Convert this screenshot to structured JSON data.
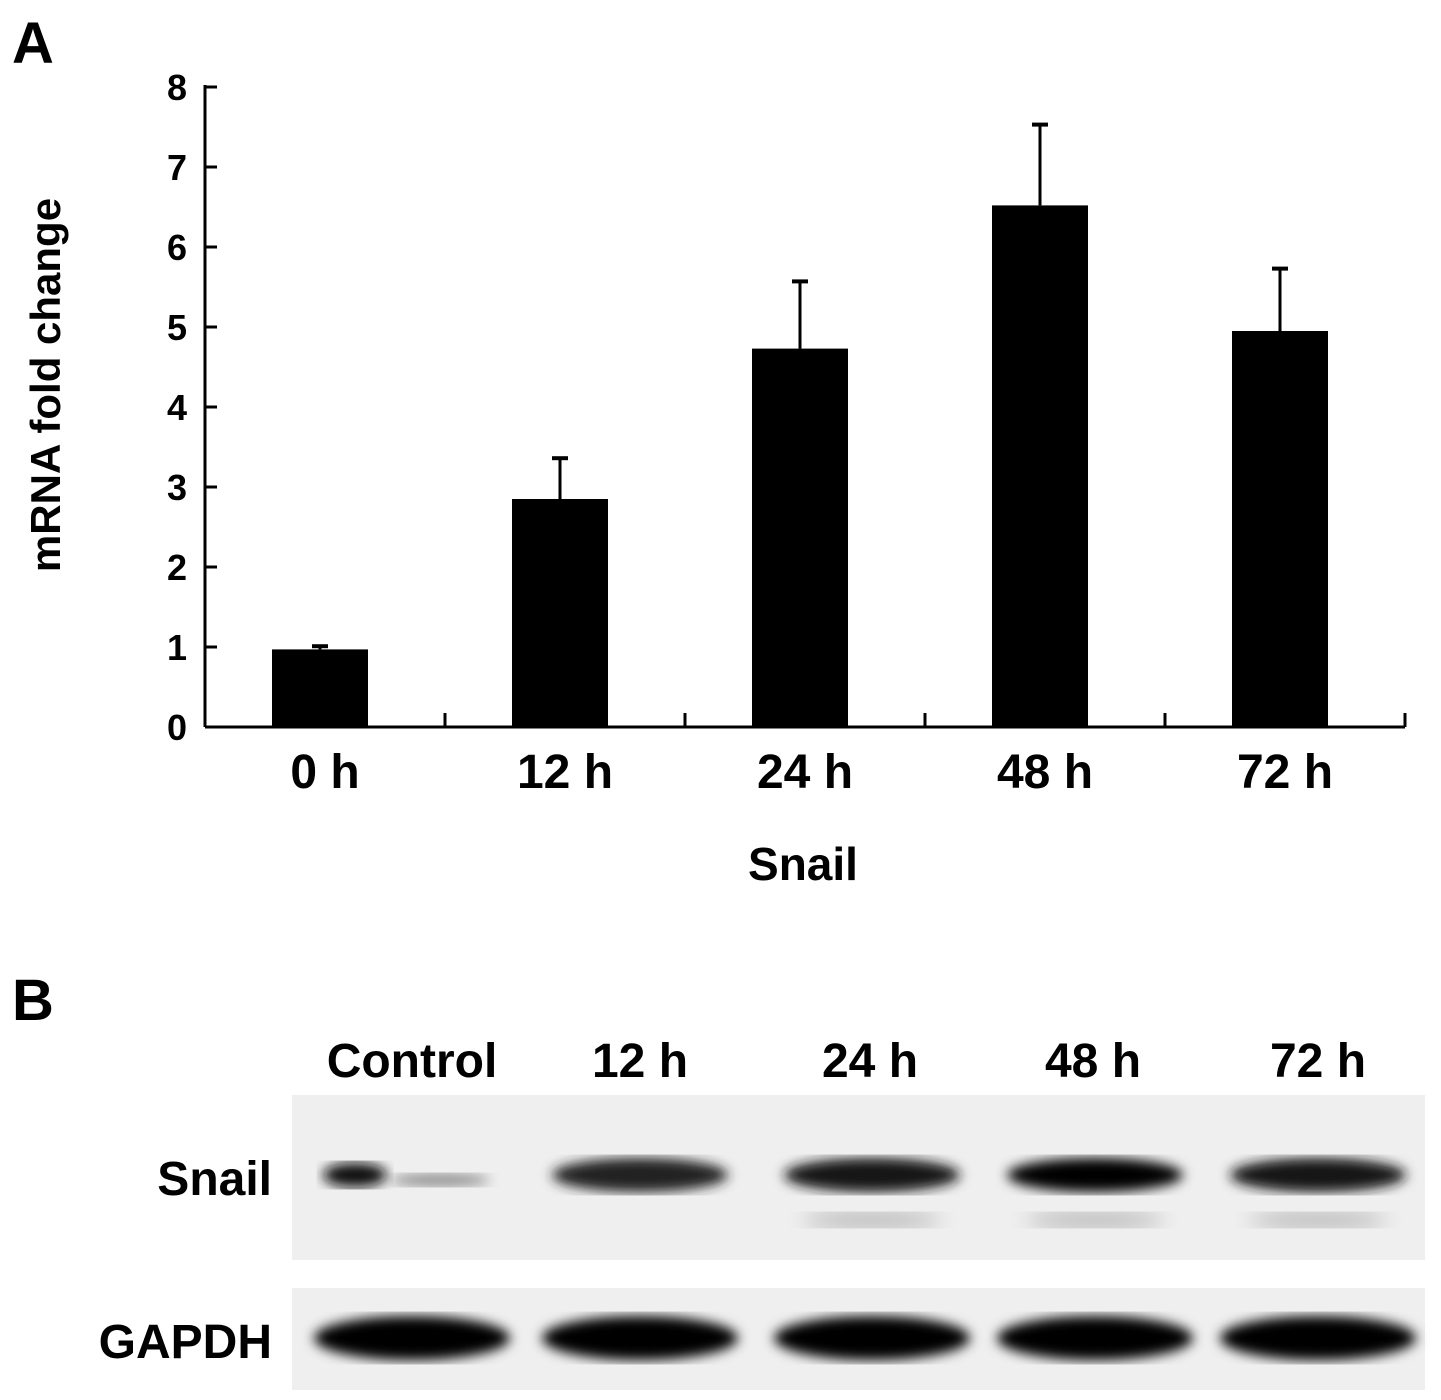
{
  "panel_a_label": "A",
  "panel_b_label": "B",
  "chart_data": {
    "type": "bar",
    "categories": [
      "0 h",
      "12 h",
      "24 h",
      "48 h",
      "72 h"
    ],
    "values": [
      0.97,
      2.85,
      4.73,
      6.52,
      4.95
    ],
    "error_upper": [
      1.01,
      3.36,
      5.57,
      7.53,
      5.73
    ],
    "xlabel": "Snail",
    "ylabel": "mRNA fold change",
    "ylim": [
      0,
      8
    ],
    "yticks": [
      "0",
      "1",
      "2",
      "3",
      "4",
      "5",
      "6",
      "7",
      "8"
    ],
    "bar_color": "#000000",
    "grid": false
  },
  "blot": {
    "lanes": [
      "Control",
      "12 h",
      "24 h",
      "48 h",
      "72 h"
    ],
    "rows": [
      {
        "label": "Snail",
        "intensity": [
          0.5,
          0.85,
          0.9,
          1.0,
          0.9
        ]
      },
      {
        "label": "GAPDH",
        "intensity": [
          1.0,
          1.0,
          1.0,
          1.0,
          1.0
        ]
      }
    ]
  }
}
